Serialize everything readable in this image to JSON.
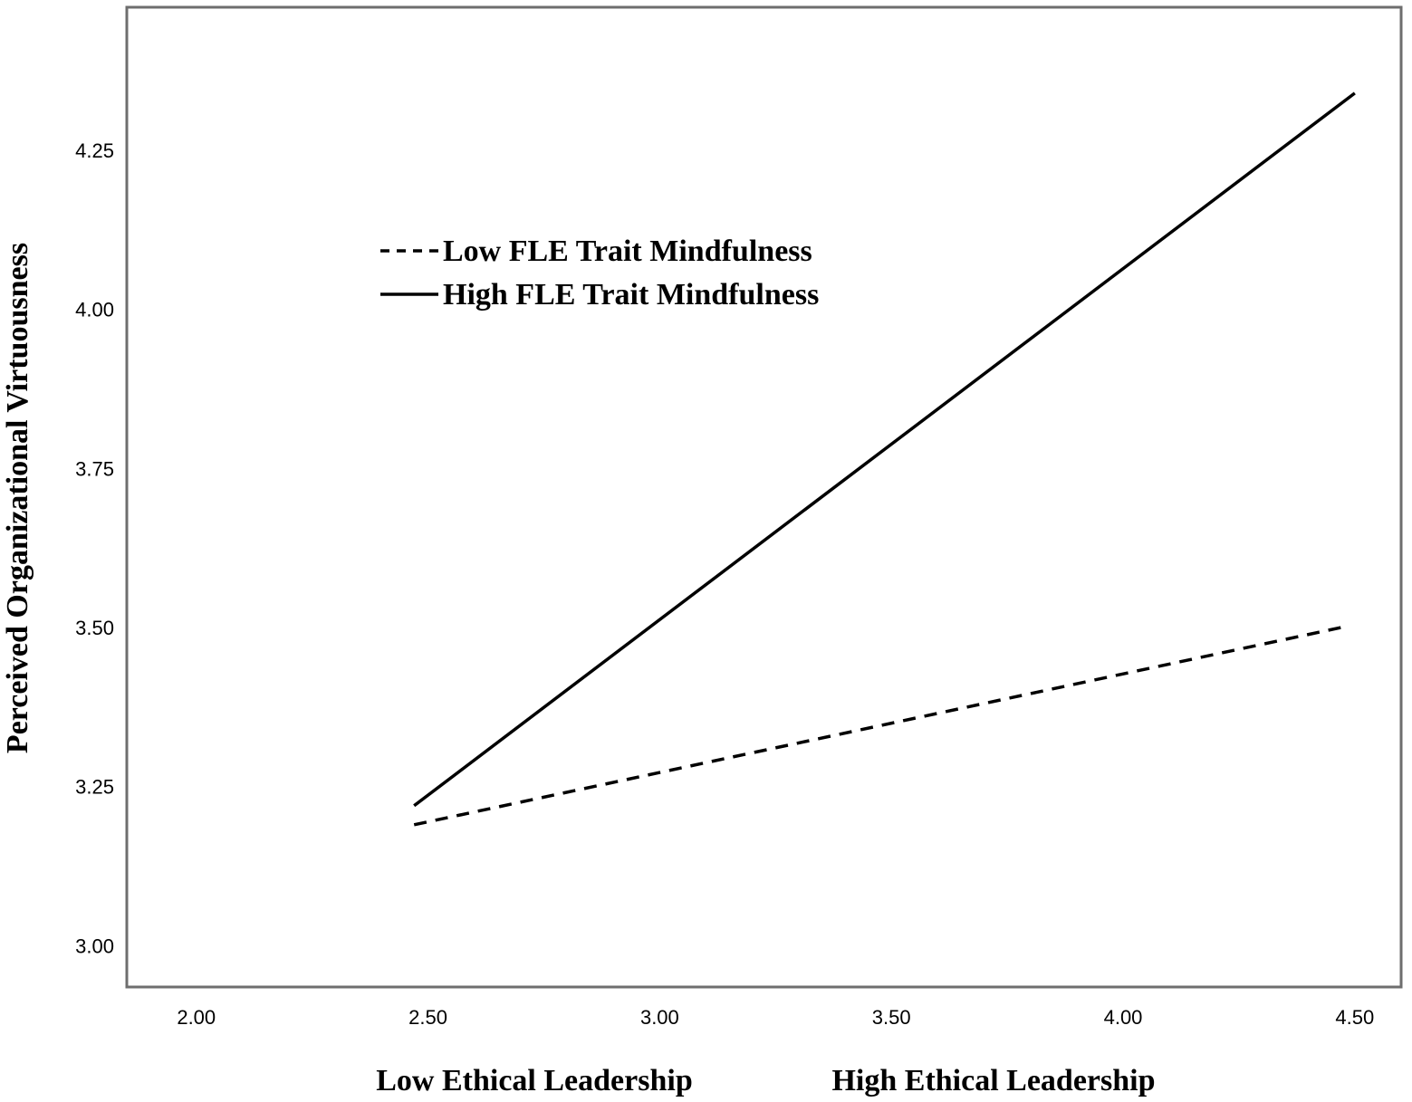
{
  "chart_data": {
    "type": "line",
    "title": "",
    "ylabel": "Perceived Organizational Virtuousness",
    "xlabel_left": "Low Ethical Leadership",
    "xlabel_right": "High Ethical Leadership",
    "xlim": [
      1.85,
      4.6
    ],
    "ylim": [
      2.935,
      4.475
    ],
    "x_ticks": [
      "2.00",
      "2.50",
      "3.00",
      "3.50",
      "4.00",
      "4.50"
    ],
    "x_tick_values": [
      2.0,
      2.5,
      3.0,
      3.5,
      4.0,
      4.5
    ],
    "y_ticks": [
      "3.00",
      "3.25",
      "3.50",
      "3.75",
      "4.00",
      "4.25"
    ],
    "y_tick_values": [
      3.0,
      3.25,
      3.5,
      3.75,
      4.0,
      4.25
    ],
    "grid": false,
    "legend_position": "top-left",
    "series": [
      {
        "name": "Low FLE Trait Mindfulness",
        "style": "dashed",
        "color": "#000000",
        "x": [
          2.47,
          4.47
        ],
        "y": [
          3.19,
          3.5
        ]
      },
      {
        "name": "High FLE Trait Mindfulness",
        "style": "solid",
        "color": "#000000",
        "x": [
          2.47,
          4.5
        ],
        "y": [
          3.22,
          4.34
        ]
      }
    ]
  }
}
